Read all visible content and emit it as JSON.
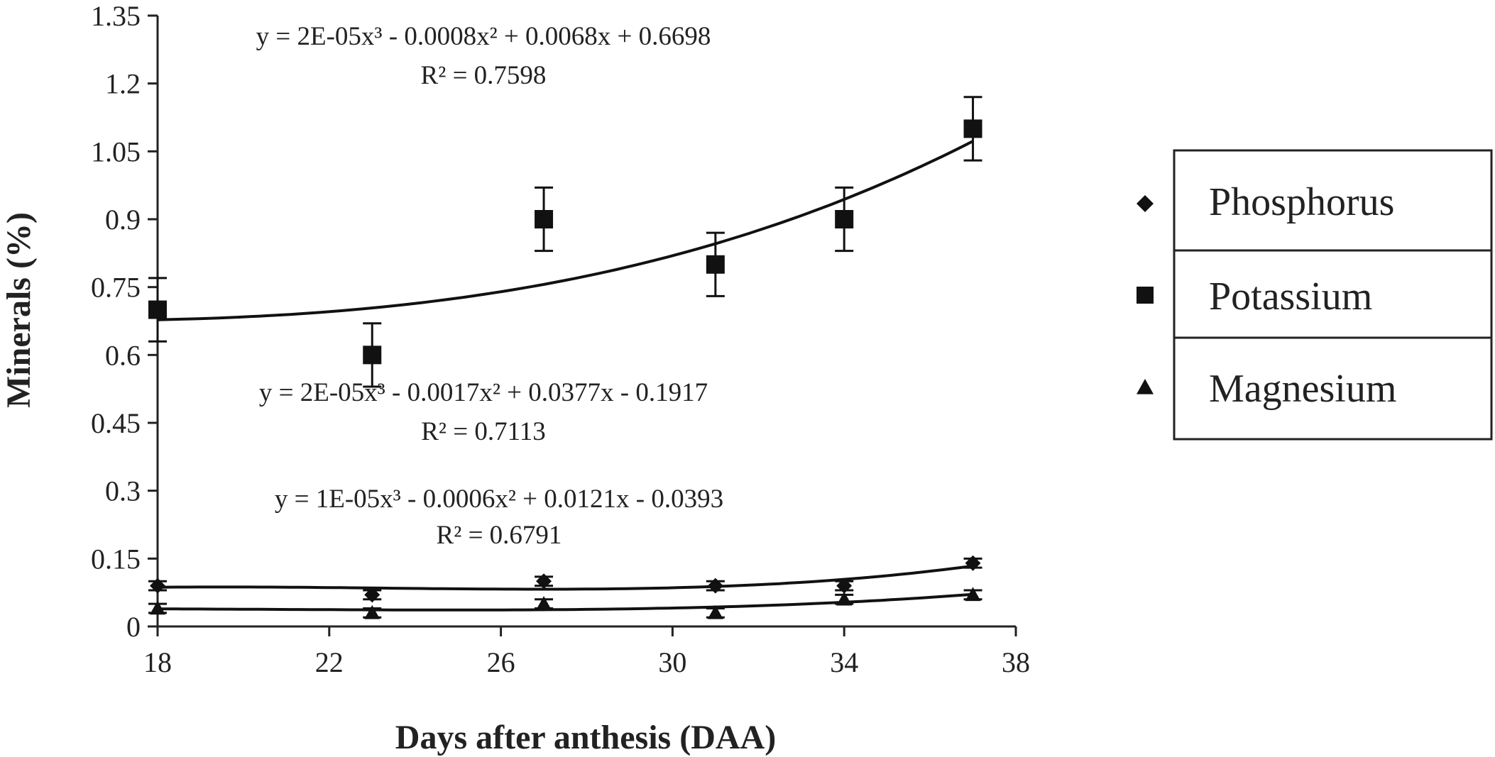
{
  "chart_data": {
    "type": "scatter",
    "title": "",
    "xlabel": "Days after anthesis (DAA)",
    "ylabel": "Minerals  (%)",
    "xlim": [
      18,
      38
    ],
    "ylim": [
      0,
      1.35
    ],
    "xticks": [
      18,
      22,
      26,
      30,
      34,
      38
    ],
    "yticks": [
      0,
      0.15,
      0.3,
      0.45,
      0.6,
      0.75,
      0.9,
      1.05,
      1.2,
      1.35
    ],
    "xtick_labels": [
      "18",
      "22",
      "26",
      "30",
      "34",
      "38"
    ],
    "ytick_labels": [
      "0",
      "0.15",
      "0.3",
      "0.45",
      "0.6",
      "0.75",
      "0.9",
      "1.05",
      "1.2",
      "1.35"
    ],
    "grid": false,
    "legend_position": "right",
    "series": [
      {
        "name": "Phosphorus",
        "marker": "diamond",
        "x": [
          18,
          23,
          27,
          31,
          34,
          37
        ],
        "y": [
          0.09,
          0.07,
          0.1,
          0.09,
          0.09,
          0.14
        ],
        "error": [
          0.01,
          0.01,
          0.01,
          0.01,
          0.01,
          0.01
        ],
        "trendline": {
          "type": "polynomial-3",
          "coefficients": [
            -0.0393,
            0.0121,
            -0.0006,
            1e-05
          ],
          "equation": "y = 1E-05x³ - 0.0006x² + 0.0121x - 0.0393",
          "r2": "R² = 0.6791"
        }
      },
      {
        "name": "Potassium",
        "marker": "square",
        "x": [
          18,
          23,
          27,
          31,
          34,
          37
        ],
        "y": [
          0.7,
          0.6,
          0.9,
          0.8,
          0.9,
          1.1
        ],
        "error": [
          0.07,
          0.07,
          0.07,
          0.07,
          0.07,
          0.07
        ],
        "trendline": {
          "type": "polynomial-3",
          "coefficients": [
            0.6698,
            0.0068,
            -0.0008,
            2e-05
          ],
          "equation": "y = 2E-05x³ - 0.0008x² + 0.0068x + 0.6698",
          "r2": "R² = 0.7598"
        }
      },
      {
        "name": "Magnesium",
        "marker": "triangle",
        "x": [
          18,
          23,
          27,
          31,
          34,
          37
        ],
        "y": [
          0.04,
          0.03,
          0.05,
          0.03,
          0.06,
          0.07
        ],
        "error": [
          0.01,
          0.01,
          0.01,
          0.01,
          0.01,
          0.01
        ],
        "trendline": {
          "type": "polynomial-3",
          "coefficients": [
            -0.1917,
            0.0377,
            -0.0017,
            2e-05
          ],
          "equation": "y = 2E-05x³ - 0.0017x² + 0.0377x - 0.1917",
          "r2": "R² = 0.7113"
        }
      }
    ]
  }
}
